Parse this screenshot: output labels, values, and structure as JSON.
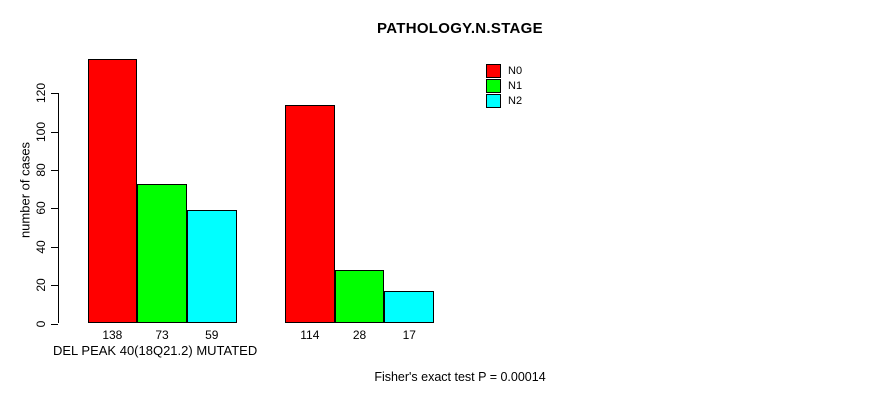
{
  "chart_data": {
    "type": "bar",
    "title": "PATHOLOGY.N.STAGE",
    "ylabel": "number of cases",
    "xlabel": "DEL PEAK 40(18Q21.2) MUTATED",
    "ylim": [
      0,
      120
    ],
    "yticks": [
      0,
      20,
      40,
      60,
      80,
      100,
      120
    ],
    "grid": false,
    "legend_position": "top-right",
    "bar_colors": {
      "red": "#FF0000",
      "green": "#00FF00",
      "cyan": "#00FFFF"
    },
    "series": [
      {
        "name": "N0",
        "color": "#FF0000",
        "values": [
          138,
          114
        ]
      },
      {
        "name": "N1",
        "color": "#00FF00",
        "values": [
          73,
          28
        ]
      },
      {
        "name": "N2",
        "color": "#00FFFF",
        "values": [
          59,
          17
        ]
      }
    ],
    "bar_value_labels": [
      [
        "138",
        "73",
        "59"
      ],
      [
        "114",
        "28",
        "17"
      ]
    ],
    "annotation": "Fisher's exact test P = 0.00014"
  }
}
